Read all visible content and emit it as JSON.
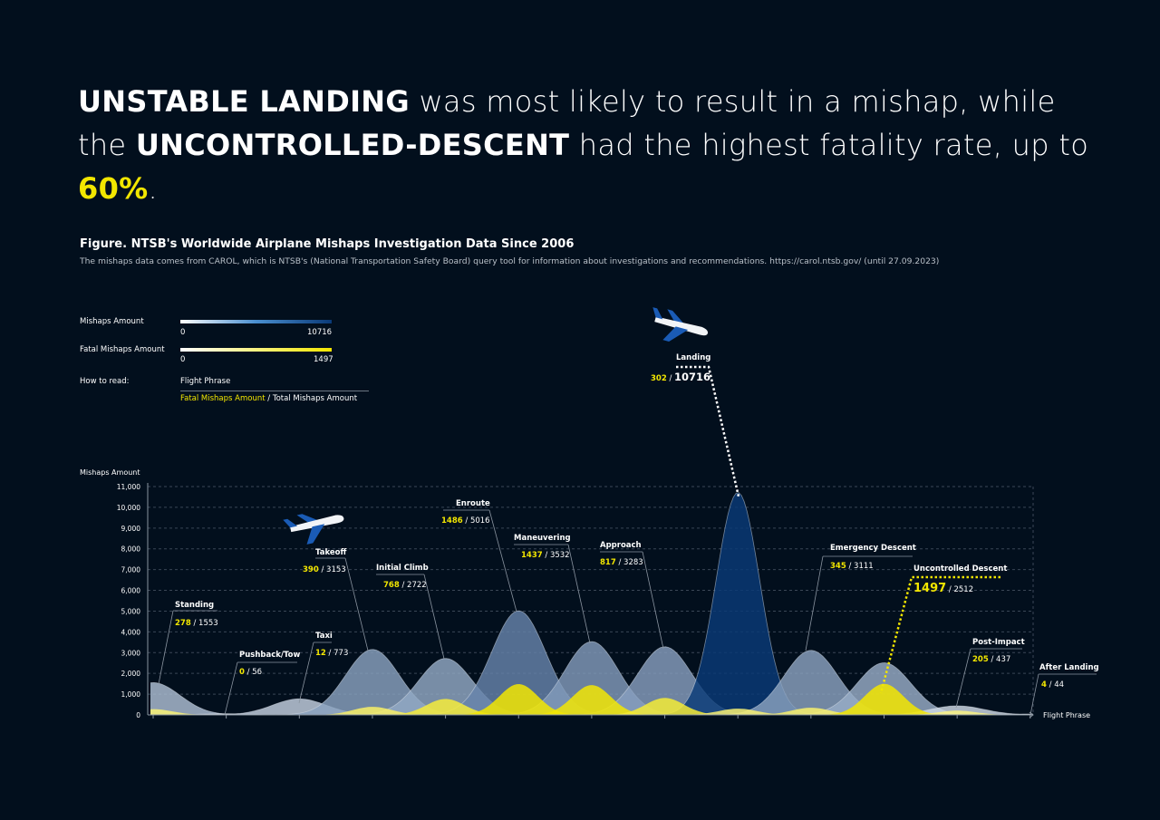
{
  "headline": {
    "line1_bold": "UNSTABLE LANDING",
    "line1_rest": " was most likely to result in a mishap, while",
    "line2_pre": "the ",
    "line2_bold": "UNCONTROLLED-DESCENT",
    "line2_rest": " had the highest fatality rate, up to ",
    "line2_highlight": "60%",
    "line2_end": "."
  },
  "figure": {
    "title": "Figure. NTSB's Worldwide Airplane Mishaps Investigation Data Since 2006",
    "subtitle": "The mishaps data comes from CAROL, which is NTSB's (National Transportation Safety Board) query tool for information about investigations and recommendations. https://carol.ntsb.gov/ (until 27.09.2023)"
  },
  "legend": {
    "mishaps_label": "Mishaps Amount",
    "mishaps_min": "0",
    "mishaps_max": "10716",
    "fatal_label": "Fatal Mishaps Amount",
    "fatal_min": "0",
    "fatal_max": "1497",
    "how_to_read_label": "How to read:",
    "how_to_read_phase": "Flight Phrase",
    "how_to_read_fatal": "Fatal Mishaps Amount",
    "how_to_read_sep": " / ",
    "how_to_read_total": "Total Mishaps Amount"
  },
  "colors": {
    "background": "#020f1d",
    "mishaps_low": "#ffffff",
    "mishaps_high": "#0a3a78",
    "fatal_low": "#ffffff",
    "fatal_high": "#f2e600",
    "highlight": "#f2e600"
  },
  "chart_data": {
    "type": "area",
    "ylabel": "Mishaps Amount",
    "xlabel": "Flight Phrase",
    "ylim": [
      0,
      11000
    ],
    "yticks": [
      "0",
      "1,000",
      "2,000",
      "3,000",
      "4,000",
      "5,000",
      "6,000",
      "7,000",
      "8,000",
      "9,000",
      "10,000",
      "11,000"
    ],
    "grid": true,
    "categories": [
      "Standing",
      "Pushback/Tow",
      "Taxi",
      "Takeoff",
      "Initial Climb",
      "Enroute",
      "Maneuvering",
      "Approach",
      "Landing",
      "Emergency Descent",
      "Uncontrolled Descent",
      "Post-Impact",
      "After Landing"
    ],
    "series": [
      {
        "name": "Mishaps Amount",
        "values": [
          1553,
          56,
          773,
          3153,
          2722,
          5016,
          3532,
          3283,
          10716,
          3111,
          2512,
          437,
          44
        ]
      },
      {
        "name": "Fatal Mishaps Amount",
        "values": [
          278,
          0,
          12,
          390,
          768,
          1486,
          1437,
          817,
          302,
          345,
          1497,
          205,
          4
        ]
      }
    ]
  }
}
